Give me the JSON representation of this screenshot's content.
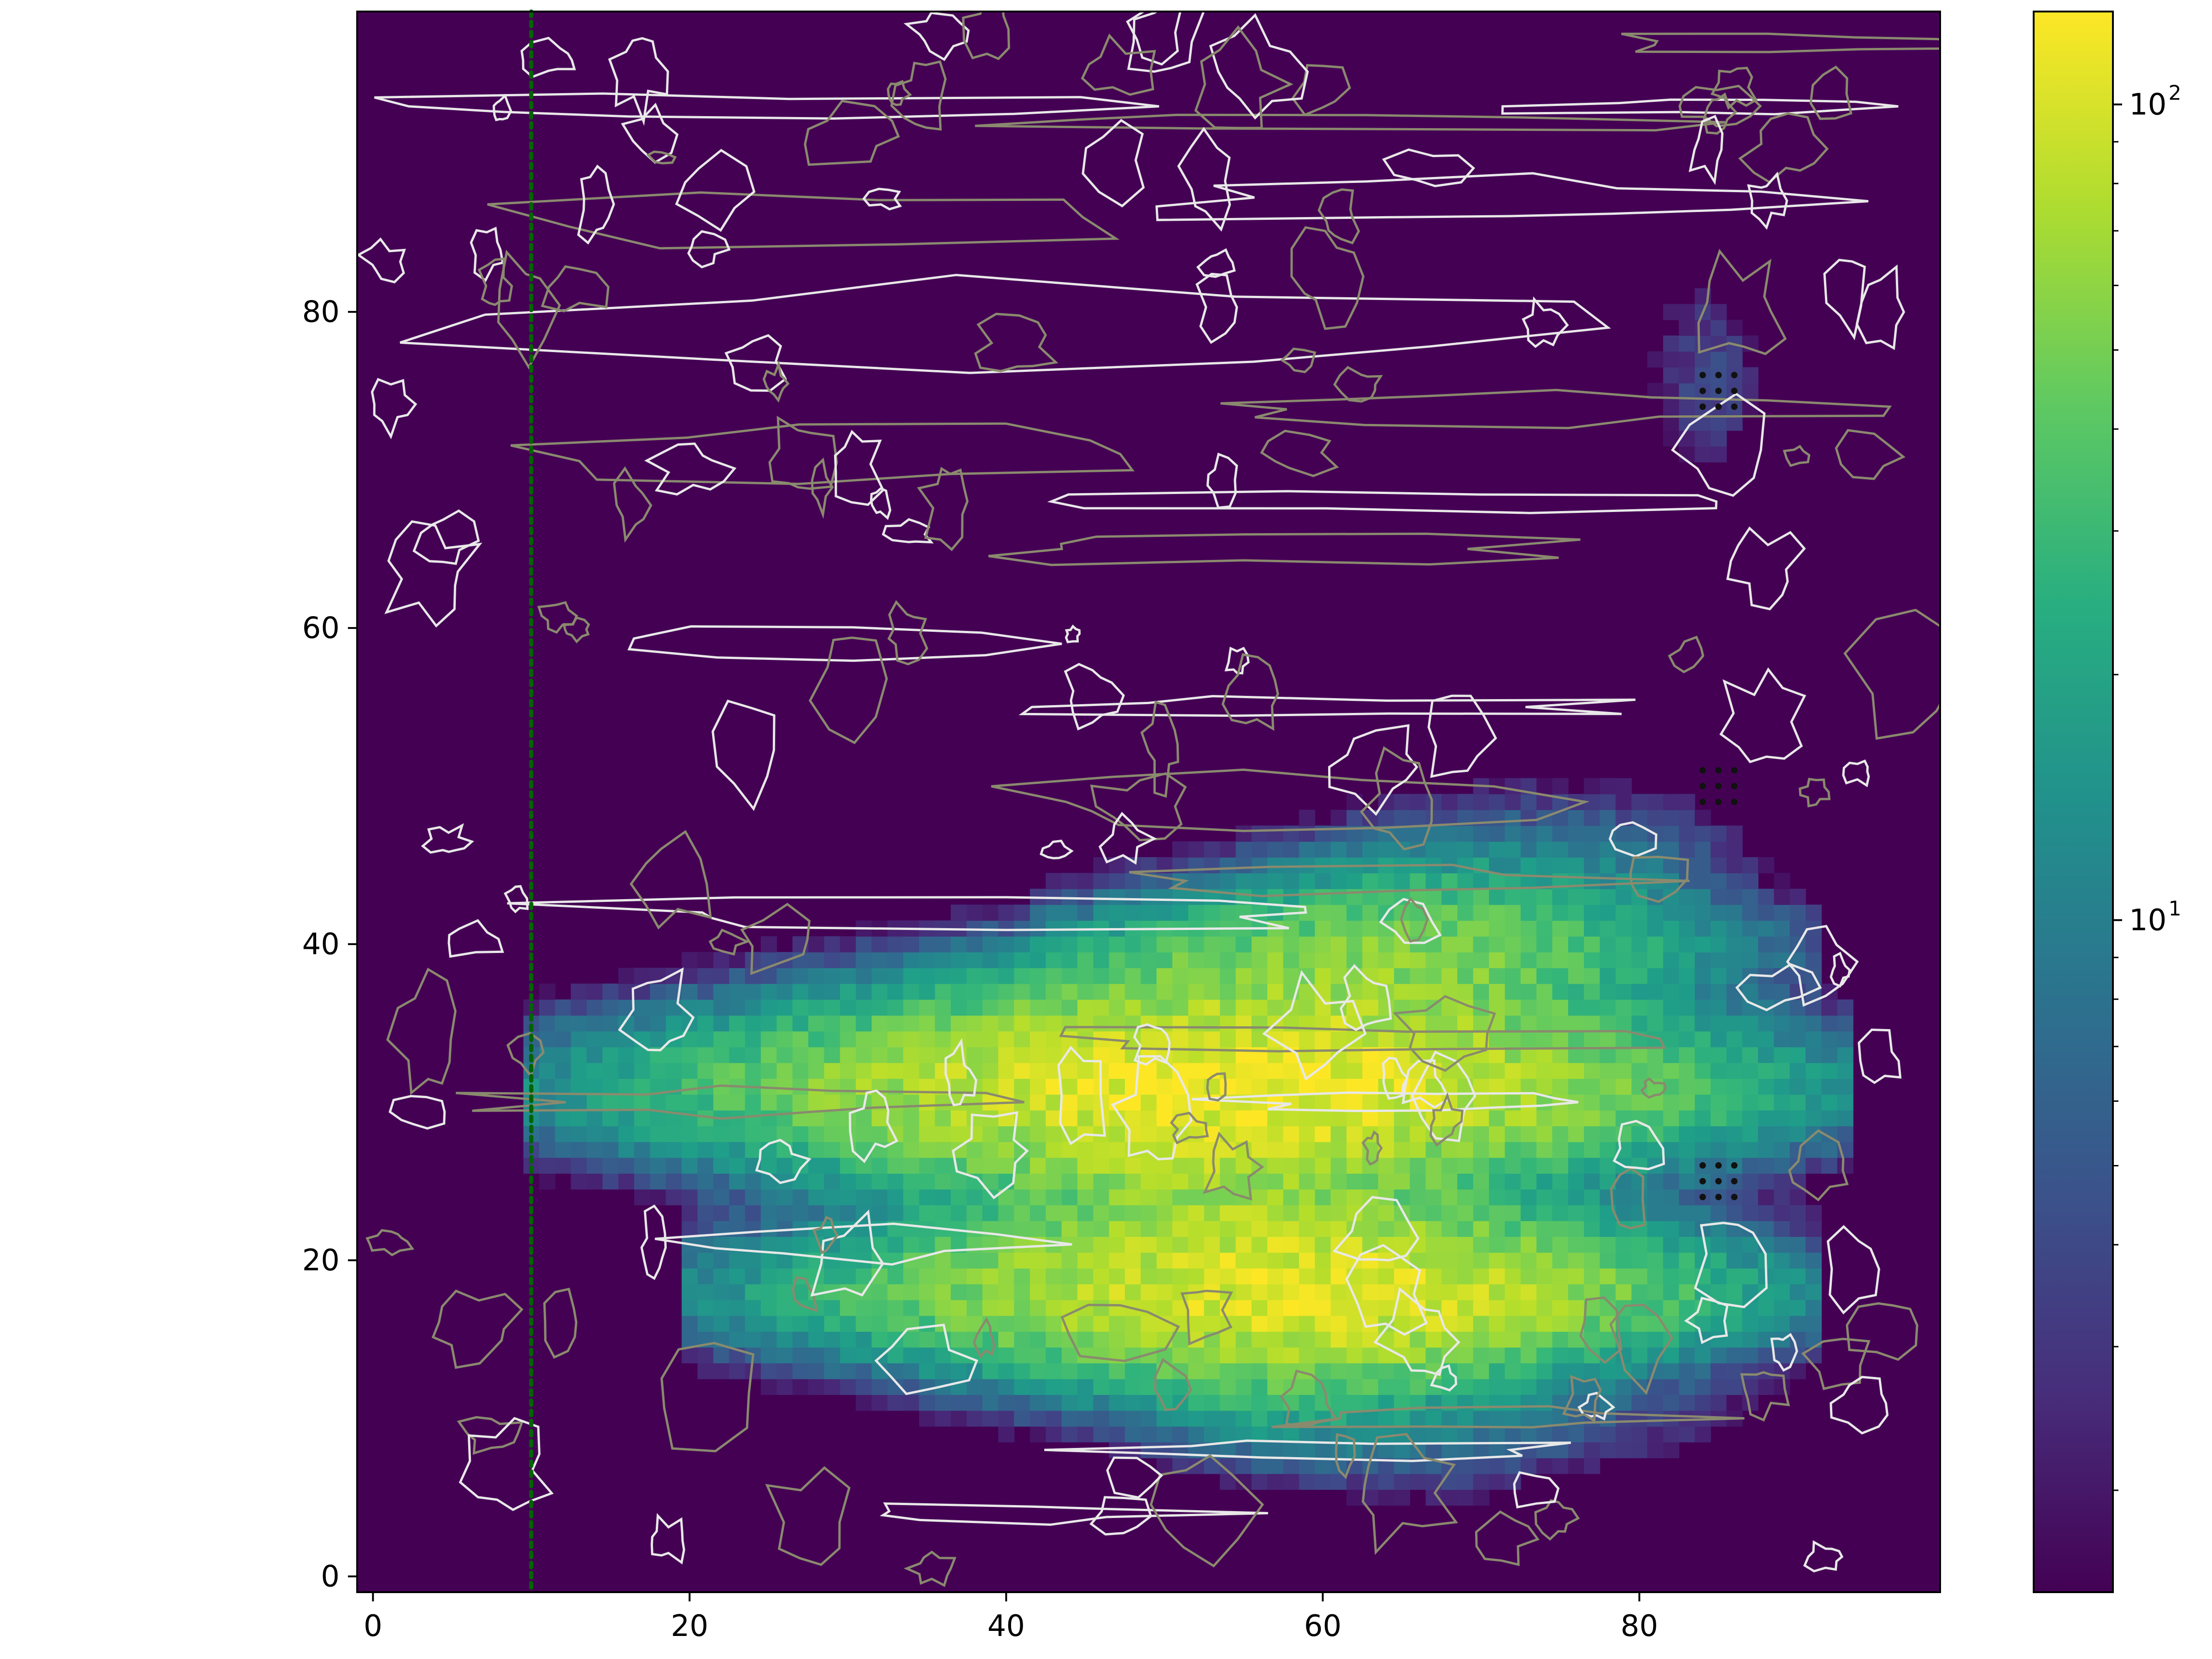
{
  "chart_data": {
    "type": "heatmap",
    "title": "",
    "xlabel": "",
    "ylabel": "",
    "x_range": [
      -1,
      99
    ],
    "y_range": [
      -1,
      99
    ],
    "x_ticks": [
      0,
      20,
      40,
      60,
      80
    ],
    "y_ticks": [
      0,
      20,
      40,
      60,
      80
    ],
    "x_tick_labels": [
      "0",
      "20",
      "40",
      "60",
      "80"
    ],
    "y_tick_labels": [
      "0",
      "20",
      "40",
      "60",
      "80"
    ],
    "colormap": "viridis",
    "color_scale": "log",
    "color_range": [
      1.5,
      130
    ],
    "colorbar_ticks": [
      {
        "base": "10",
        "exp": "1",
        "value": 10
      },
      {
        "base": "10",
        "exp": "2",
        "value": 100
      }
    ],
    "bands": [
      {
        "y_center": 31,
        "y_spread": 3.0,
        "x_start": 10,
        "x_end": 93,
        "peak_x": 55,
        "peak_value": 120
      },
      {
        "y_center": 18,
        "y_spread": 2.6,
        "x_start": 20,
        "x_end": 91,
        "peak_x": 60,
        "peak_value": 110
      },
      {
        "y_center": 40,
        "y_spread": 2.2,
        "x_start": 42,
        "x_end": 91,
        "peak_x": 66,
        "peak_value": 45
      },
      {
        "y_center": 10,
        "y_spread": 2.0,
        "x_start": 47,
        "x_end": 90,
        "peak_x": 62,
        "peak_value": 8
      },
      {
        "y_center": 46,
        "y_spread": 2.0,
        "x_start": 55,
        "x_end": 89,
        "peak_x": 80,
        "peak_value": 6
      },
      {
        "y_center": 76,
        "y_spread": 3.0,
        "x_start": 78,
        "x_end": 89,
        "peak_x": 85,
        "peak_value": 4
      }
    ],
    "reference_line": {
      "x": 10,
      "style": "dotted",
      "color": "#006400"
    },
    "stipple_regions": [
      {
        "x": [
          84,
          86
        ],
        "y": [
          74,
          76
        ]
      },
      {
        "x": [
          84,
          86
        ],
        "y": [
          49,
          51
        ]
      },
      {
        "x": [
          84,
          86
        ],
        "y": [
          24,
          26
        ]
      }
    ],
    "contours": {
      "light_color": "#e8e8e8",
      "dark_color": "#8a8a6e"
    }
  }
}
